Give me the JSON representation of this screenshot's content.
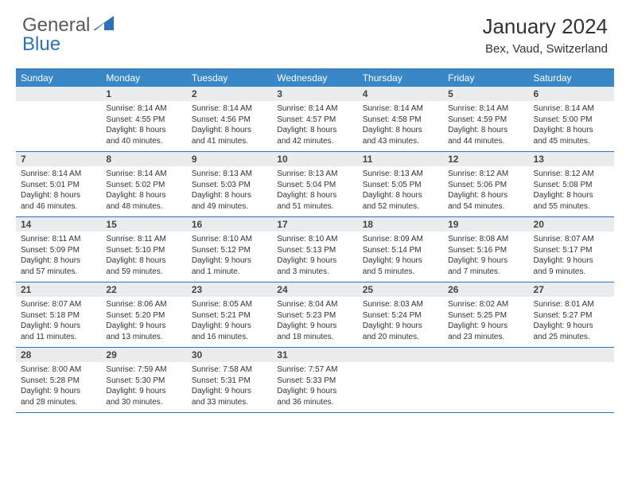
{
  "logo": {
    "text1": "General",
    "text2": "Blue",
    "text1_color": "#5a5a5a",
    "text2_color": "#2d72b8",
    "triangle_color": "#2d72b8"
  },
  "title": "January 2024",
  "subtitle": "Bex, Vaud, Switzerland",
  "colors": {
    "header_bg": "#3a87c7",
    "header_text": "#ffffff",
    "daynum_bg": "#e9edef",
    "border": "#2d72b8",
    "body_text": "#333333"
  },
  "weekdays": [
    "Sunday",
    "Monday",
    "Tuesday",
    "Wednesday",
    "Thursday",
    "Friday",
    "Saturday"
  ],
  "weeks": [
    [
      {
        "day": "",
        "lines": []
      },
      {
        "day": "1",
        "lines": [
          "Sunrise: 8:14 AM",
          "Sunset: 4:55 PM",
          "Daylight: 8 hours",
          "and 40 minutes."
        ]
      },
      {
        "day": "2",
        "lines": [
          "Sunrise: 8:14 AM",
          "Sunset: 4:56 PM",
          "Daylight: 8 hours",
          "and 41 minutes."
        ]
      },
      {
        "day": "3",
        "lines": [
          "Sunrise: 8:14 AM",
          "Sunset: 4:57 PM",
          "Daylight: 8 hours",
          "and 42 minutes."
        ]
      },
      {
        "day": "4",
        "lines": [
          "Sunrise: 8:14 AM",
          "Sunset: 4:58 PM",
          "Daylight: 8 hours",
          "and 43 minutes."
        ]
      },
      {
        "day": "5",
        "lines": [
          "Sunrise: 8:14 AM",
          "Sunset: 4:59 PM",
          "Daylight: 8 hours",
          "and 44 minutes."
        ]
      },
      {
        "day": "6",
        "lines": [
          "Sunrise: 8:14 AM",
          "Sunset: 5:00 PM",
          "Daylight: 8 hours",
          "and 45 minutes."
        ]
      }
    ],
    [
      {
        "day": "7",
        "lines": [
          "Sunrise: 8:14 AM",
          "Sunset: 5:01 PM",
          "Daylight: 8 hours",
          "and 46 minutes."
        ]
      },
      {
        "day": "8",
        "lines": [
          "Sunrise: 8:14 AM",
          "Sunset: 5:02 PM",
          "Daylight: 8 hours",
          "and 48 minutes."
        ]
      },
      {
        "day": "9",
        "lines": [
          "Sunrise: 8:13 AM",
          "Sunset: 5:03 PM",
          "Daylight: 8 hours",
          "and 49 minutes."
        ]
      },
      {
        "day": "10",
        "lines": [
          "Sunrise: 8:13 AM",
          "Sunset: 5:04 PM",
          "Daylight: 8 hours",
          "and 51 minutes."
        ]
      },
      {
        "day": "11",
        "lines": [
          "Sunrise: 8:13 AM",
          "Sunset: 5:05 PM",
          "Daylight: 8 hours",
          "and 52 minutes."
        ]
      },
      {
        "day": "12",
        "lines": [
          "Sunrise: 8:12 AM",
          "Sunset: 5:06 PM",
          "Daylight: 8 hours",
          "and 54 minutes."
        ]
      },
      {
        "day": "13",
        "lines": [
          "Sunrise: 8:12 AM",
          "Sunset: 5:08 PM",
          "Daylight: 8 hours",
          "and 55 minutes."
        ]
      }
    ],
    [
      {
        "day": "14",
        "lines": [
          "Sunrise: 8:11 AM",
          "Sunset: 5:09 PM",
          "Daylight: 8 hours",
          "and 57 minutes."
        ]
      },
      {
        "day": "15",
        "lines": [
          "Sunrise: 8:11 AM",
          "Sunset: 5:10 PM",
          "Daylight: 8 hours",
          "and 59 minutes."
        ]
      },
      {
        "day": "16",
        "lines": [
          "Sunrise: 8:10 AM",
          "Sunset: 5:12 PM",
          "Daylight: 9 hours",
          "and 1 minute."
        ]
      },
      {
        "day": "17",
        "lines": [
          "Sunrise: 8:10 AM",
          "Sunset: 5:13 PM",
          "Daylight: 9 hours",
          "and 3 minutes."
        ]
      },
      {
        "day": "18",
        "lines": [
          "Sunrise: 8:09 AM",
          "Sunset: 5:14 PM",
          "Daylight: 9 hours",
          "and 5 minutes."
        ]
      },
      {
        "day": "19",
        "lines": [
          "Sunrise: 8:08 AM",
          "Sunset: 5:16 PM",
          "Daylight: 9 hours",
          "and 7 minutes."
        ]
      },
      {
        "day": "20",
        "lines": [
          "Sunrise: 8:07 AM",
          "Sunset: 5:17 PM",
          "Daylight: 9 hours",
          "and 9 minutes."
        ]
      }
    ],
    [
      {
        "day": "21",
        "lines": [
          "Sunrise: 8:07 AM",
          "Sunset: 5:18 PM",
          "Daylight: 9 hours",
          "and 11 minutes."
        ]
      },
      {
        "day": "22",
        "lines": [
          "Sunrise: 8:06 AM",
          "Sunset: 5:20 PM",
          "Daylight: 9 hours",
          "and 13 minutes."
        ]
      },
      {
        "day": "23",
        "lines": [
          "Sunrise: 8:05 AM",
          "Sunset: 5:21 PM",
          "Daylight: 9 hours",
          "and 16 minutes."
        ]
      },
      {
        "day": "24",
        "lines": [
          "Sunrise: 8:04 AM",
          "Sunset: 5:23 PM",
          "Daylight: 9 hours",
          "and 18 minutes."
        ]
      },
      {
        "day": "25",
        "lines": [
          "Sunrise: 8:03 AM",
          "Sunset: 5:24 PM",
          "Daylight: 9 hours",
          "and 20 minutes."
        ]
      },
      {
        "day": "26",
        "lines": [
          "Sunrise: 8:02 AM",
          "Sunset: 5:25 PM",
          "Daylight: 9 hours",
          "and 23 minutes."
        ]
      },
      {
        "day": "27",
        "lines": [
          "Sunrise: 8:01 AM",
          "Sunset: 5:27 PM",
          "Daylight: 9 hours",
          "and 25 minutes."
        ]
      }
    ],
    [
      {
        "day": "28",
        "lines": [
          "Sunrise: 8:00 AM",
          "Sunset: 5:28 PM",
          "Daylight: 9 hours",
          "and 28 minutes."
        ]
      },
      {
        "day": "29",
        "lines": [
          "Sunrise: 7:59 AM",
          "Sunset: 5:30 PM",
          "Daylight: 9 hours",
          "and 30 minutes."
        ]
      },
      {
        "day": "30",
        "lines": [
          "Sunrise: 7:58 AM",
          "Sunset: 5:31 PM",
          "Daylight: 9 hours",
          "and 33 minutes."
        ]
      },
      {
        "day": "31",
        "lines": [
          "Sunrise: 7:57 AM",
          "Sunset: 5:33 PM",
          "Daylight: 9 hours",
          "and 36 minutes."
        ]
      },
      {
        "day": "",
        "lines": []
      },
      {
        "day": "",
        "lines": []
      },
      {
        "day": "",
        "lines": []
      }
    ]
  ]
}
